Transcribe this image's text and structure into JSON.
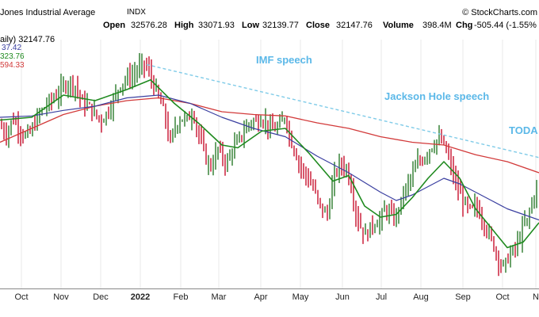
{
  "header": {
    "title": "Jones Industrial Average",
    "symbol": "INDX",
    "brand": "© StockCharts.com",
    "open_label": "Open",
    "open_value": "32576.28",
    "high_label": "High",
    "high_value": "33071.93",
    "low_label": "Low",
    "low_value": "32139.77",
    "close_label": "Close",
    "close_value": "32147.76",
    "volume_label": "Volume",
    "volume_value": "398.4M",
    "chg_label": "Chg",
    "chg_value": "-505.44 (-1.55%"
  },
  "legend": {
    "price": "aily) 32147.76",
    "ma_blue": "37.42",
    "ma_green": "323.76",
    "ma_red": "594.33"
  },
  "annotations": [
    {
      "text": "IMF speech",
      "color": "#5bb8e8"
    },
    {
      "text": "Jackson Hole speech",
      "color": "#5bb8e8"
    },
    {
      "text": "TODA",
      "color": "#5bb8e8"
    }
  ],
  "chart_data": {
    "type": "line",
    "title": "Jones Industrial Average INDX",
    "x_tick_labels": [
      "Oct",
      "Nov",
      "Dec",
      "2022",
      "Feb",
      "Mar",
      "Apr",
      "May",
      "Jun",
      "Jul",
      "Aug",
      "Sep",
      "Oct",
      "N"
    ],
    "ylim": [
      28500,
      37500
    ],
    "colors": {
      "price_up": "#2a7a2a",
      "price_down": "#c8102e",
      "ma_green": "#1f8a1f",
      "ma_blue": "#3a3fa0",
      "ma_red": "#d23a3a",
      "trend": "#7fcbe8"
    },
    "price_path": [
      [
        0,
        34400
      ],
      [
        8,
        34100
      ],
      [
        16,
        34650
      ],
      [
        24,
        34300
      ],
      [
        32,
        34000
      ],
      [
        40,
        34200
      ],
      [
        48,
        34750
      ],
      [
        56,
        35050
      ],
      [
        64,
        35300
      ],
      [
        72,
        35500
      ],
      [
        80,
        35800
      ],
      [
        88,
        36000
      ],
      [
        96,
        35800
      ],
      [
        104,
        35200
      ],
      [
        112,
        35100
      ],
      [
        120,
        34800
      ],
      [
        128,
        34600
      ],
      [
        136,
        34900
      ],
      [
        144,
        35400
      ],
      [
        152,
        35900
      ],
      [
        160,
        36100
      ],
      [
        168,
        36200
      ],
      [
        176,
        36500
      ],
      [
        184,
        36600
      ],
      [
        192,
        36000
      ],
      [
        200,
        35400
      ],
      [
        208,
        34800
      ],
      [
        214,
        33700
      ],
      [
        220,
        34300
      ],
      [
        228,
        34700
      ],
      [
        236,
        34600
      ],
      [
        244,
        34900
      ],
      [
        250,
        34100
      ],
      [
        256,
        33600
      ],
      [
        262,
        33000
      ],
      [
        268,
        32950
      ],
      [
        274,
        33600
      ],
      [
        280,
        33300
      ],
      [
        286,
        33000
      ],
      [
        292,
        33500
      ],
      [
        300,
        33800
      ],
      [
        306,
        34100
      ],
      [
        312,
        34400
      ],
      [
        318,
        34600
      ],
      [
        324,
        34500
      ],
      [
        330,
        34700
      ],
      [
        336,
        34500
      ],
      [
        342,
        34200
      ],
      [
        348,
        34300
      ],
      [
        354,
        34400
      ],
      [
        360,
        34800
      ],
      [
        366,
        33900
      ],
      [
        372,
        33500
      ],
      [
        378,
        33000
      ],
      [
        384,
        32700
      ],
      [
        390,
        32400
      ],
      [
        396,
        32100
      ],
      [
        402,
        31600
      ],
      [
        408,
        31300
      ],
      [
        414,
        31200
      ],
      [
        420,
        32400
      ],
      [
        426,
        32900
      ],
      [
        432,
        33000
      ],
      [
        438,
        32800
      ],
      [
        444,
        32100
      ],
      [
        450,
        31100
      ],
      [
        456,
        30700
      ],
      [
        462,
        30400
      ],
      [
        468,
        30800
      ],
      [
        474,
        30900
      ],
      [
        480,
        31000
      ],
      [
        486,
        31400
      ],
      [
        492,
        31200
      ],
      [
        498,
        31000
      ],
      [
        504,
        31500
      ],
      [
        510,
        32000
      ],
      [
        516,
        32400
      ],
      [
        522,
        32700
      ],
      [
        528,
        33100
      ],
      [
        534,
        33200
      ],
      [
        540,
        33500
      ],
      [
        546,
        33700
      ],
      [
        552,
        33900
      ],
      [
        558,
        33800
      ],
      [
        564,
        33400
      ],
      [
        570,
        32800
      ],
      [
        576,
        32200
      ],
      [
        582,
        31800
      ],
      [
        588,
        31500
      ],
      [
        594,
        31300
      ],
      [
        600,
        31500
      ],
      [
        606,
        31200
      ],
      [
        612,
        30800
      ],
      [
        618,
        30400
      ],
      [
        624,
        30000
      ],
      [
        630,
        29500
      ],
      [
        636,
        29300
      ],
      [
        642,
        29700
      ],
      [
        648,
        29900
      ],
      [
        654,
        30200
      ],
      [
        660,
        30800
      ],
      [
        666,
        31000
      ],
      [
        672,
        31800
      ],
      [
        680,
        32150
      ]
    ],
    "ma_green": [
      [
        0,
        34600
      ],
      [
        40,
        34700
      ],
      [
        80,
        35500
      ],
      [
        120,
        35300
      ],
      [
        160,
        35700
      ],
      [
        190,
        36050
      ],
      [
        220,
        35200
      ],
      [
        250,
        34500
      ],
      [
        280,
        33700
      ],
      [
        300,
        33600
      ],
      [
        330,
        34200
      ],
      [
        360,
        34300
      ],
      [
        390,
        33400
      ],
      [
        420,
        32400
      ],
      [
        440,
        32600
      ],
      [
        460,
        31500
      ],
      [
        480,
        31100
      ],
      [
        500,
        31200
      ],
      [
        520,
        31800
      ],
      [
        540,
        32500
      ],
      [
        560,
        33100
      ],
      [
        580,
        32500
      ],
      [
        600,
        31400
      ],
      [
        620,
        30700
      ],
      [
        640,
        30000
      ],
      [
        660,
        30200
      ],
      [
        680,
        30900
      ]
    ],
    "ma_blue": [
      [
        0,
        34700
      ],
      [
        40,
        34750
      ],
      [
        80,
        34950
      ],
      [
        120,
        35100
      ],
      [
        160,
        35400
      ],
      [
        200,
        35500
      ],
      [
        240,
        35200
      ],
      [
        280,
        34700
      ],
      [
        320,
        34300
      ],
      [
        360,
        34000
      ],
      [
        400,
        33300
      ],
      [
        440,
        32700
      ],
      [
        480,
        32000
      ],
      [
        500,
        31700
      ],
      [
        520,
        31900
      ],
      [
        540,
        32200
      ],
      [
        560,
        32500
      ],
      [
        580,
        32300
      ],
      [
        600,
        32000
      ],
      [
        620,
        31700
      ],
      [
        640,
        31400
      ],
      [
        660,
        31200
      ],
      [
        680,
        31000
      ]
    ],
    "ma_red": [
      [
        0,
        33800
      ],
      [
        40,
        34300
      ],
      [
        80,
        34800
      ],
      [
        120,
        35100
      ],
      [
        160,
        35300
      ],
      [
        200,
        35400
      ],
      [
        240,
        35200
      ],
      [
        280,
        34900
      ],
      [
        320,
        34800
      ],
      [
        360,
        34750
      ],
      [
        400,
        34500
      ],
      [
        440,
        34300
      ],
      [
        480,
        34000
      ],
      [
        520,
        33800
      ],
      [
        560,
        33700
      ],
      [
        600,
        33350
      ],
      [
        640,
        33100
      ],
      [
        680,
        32700
      ]
    ],
    "trendline": [
      [
        185,
        36600
      ],
      [
        680,
        33250
      ]
    ]
  }
}
